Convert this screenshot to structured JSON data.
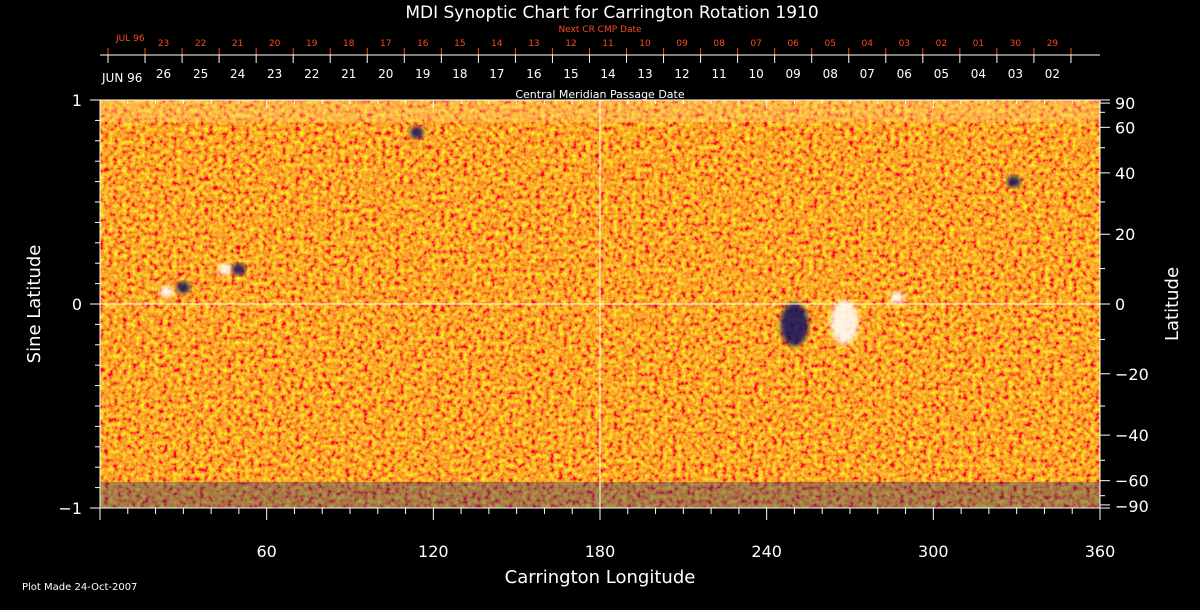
{
  "chart_data": {
    "type": "heatmap",
    "title": "MDI Synoptic Chart for Carrington Rotation 1910",
    "xlabel": "Carrington Longitude",
    "ylabel": "Sine Latitude",
    "ylabel_right": "Latitude",
    "top_axis_label": "Central Meridian Passage Date",
    "top2_axis_label": "Next CR CMP Date",
    "month_label_bottom_axis": "JUN 96",
    "month_label_top_axis": "JUL 96",
    "xlim": [
      0,
      360
    ],
    "ylim": [
      -1,
      1
    ],
    "x_ticks": [
      "60",
      "120",
      "180",
      "240",
      "300",
      "360"
    ],
    "y_ticks": [
      "1",
      "0",
      "−1"
    ],
    "y_ticks_right": [
      "90",
      "60",
      "40",
      "20",
      "0",
      "−20",
      "−40",
      "−60",
      "−90"
    ],
    "cmp_dates": [
      "26",
      "25",
      "24",
      "23",
      "22",
      "21",
      "20",
      "19",
      "18",
      "17",
      "16",
      "15",
      "14",
      "13",
      "12",
      "11",
      "10",
      "09",
      "08",
      "07",
      "06",
      "05",
      "04",
      "03",
      "02"
    ],
    "next_cmp_dates": [
      "23",
      "22",
      "21",
      "20",
      "19",
      "18",
      "17",
      "16",
      "15",
      "14",
      "13",
      "12",
      "11",
      "10",
      "09",
      "08",
      "07",
      "06",
      "05",
      "04",
      "03",
      "02",
      "01",
      "30",
      "29"
    ],
    "grid": "lines at longitude 180 and sine latitude 0",
    "colors": {
      "background_field": "#e8400a",
      "positive_polarity": "#ffffff",
      "negative_polarity": "#101060"
    },
    "features": [
      {
        "polarity": "positive",
        "longitude": 45,
        "sine_latitude": 0.17
      },
      {
        "polarity": "negative",
        "longitude": 50,
        "sine_latitude": 0.17
      },
      {
        "polarity": "positive",
        "longitude": 24,
        "sine_latitude": 0.06
      },
      {
        "polarity": "negative",
        "longitude": 30,
        "sine_latitude": 0.08
      },
      {
        "polarity": "negative",
        "longitude": 250,
        "sine_latitude": -0.1
      },
      {
        "polarity": "positive",
        "longitude": 268,
        "sine_latitude": -0.09
      },
      {
        "polarity": "negative",
        "longitude": 114,
        "sine_latitude": 0.84
      },
      {
        "polarity": "negative",
        "longitude": 329,
        "sine_latitude": 0.6
      },
      {
        "polarity": "positive",
        "longitude": 287,
        "sine_latitude": 0.03
      }
    ]
  },
  "footer": {
    "plot_made": "Plot Made 24-Oct-2007"
  }
}
